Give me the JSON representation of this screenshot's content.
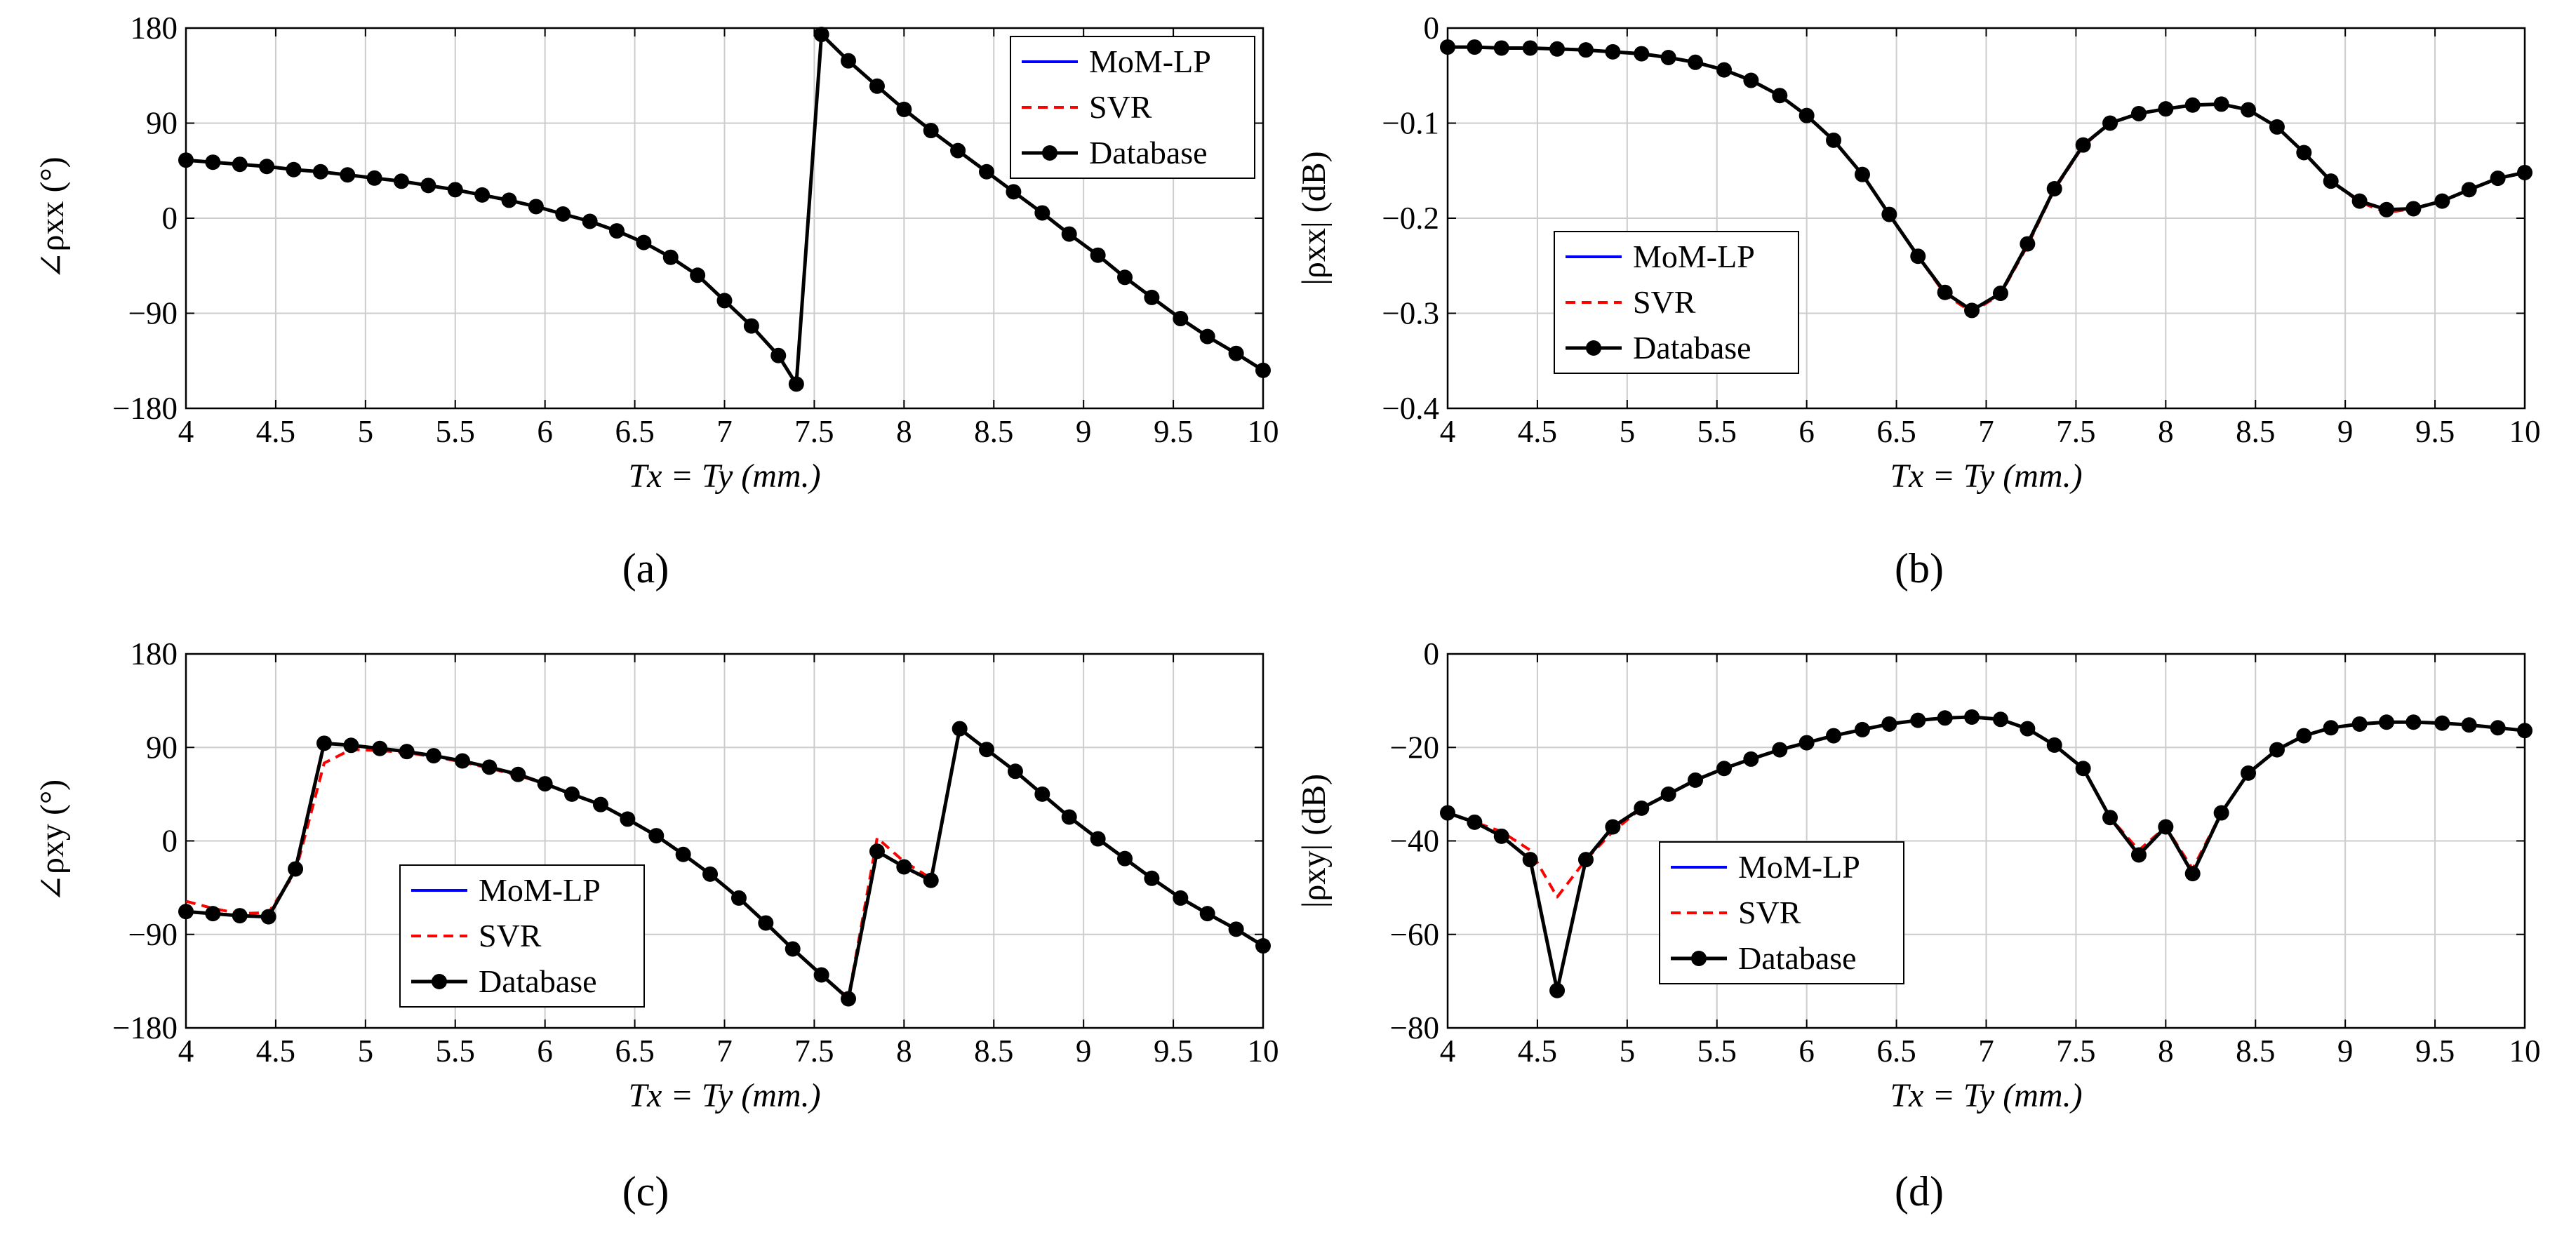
{
  "colors": {
    "mom": "#0000ff",
    "svr": "#ff0000",
    "db": "#000000",
    "grid": "#cccccc"
  },
  "chart_data": [
    {
      "type": "line",
      "caption": "(a)",
      "ylabel": "∠ρxx (°)",
      "xlabel": "Tx = Ty (mm.)",
      "xlim": [
        4,
        10
      ],
      "ylim": [
        -180,
        180
      ],
      "xticks": [
        "4",
        "4.5",
        "5",
        "5.5",
        "6",
        "6.5",
        "7",
        "7.5",
        "8",
        "8.5",
        "9",
        "9.5",
        "10"
      ],
      "yticks": [
        "−180",
        "−90",
        "0",
        "90",
        "180"
      ],
      "ytick_values": [
        -180,
        -90,
        0,
        90,
        180
      ],
      "legend": [
        "MoM-LP",
        "SVR",
        "Database"
      ],
      "legend_position": "top-right",
      "x": [
        4,
        4.15,
        4.3,
        4.45,
        4.6,
        4.75,
        4.9,
        5.05,
        5.2,
        5.35,
        5.5,
        5.65,
        5.8,
        5.95,
        6.1,
        6.25,
        6.4,
        6.55,
        6.7,
        6.85,
        7.0,
        7.15,
        7.3,
        7.4,
        7.54,
        7.69,
        7.85,
        8.0,
        8.15,
        8.3,
        8.46,
        8.61,
        8.77,
        8.92,
        9.08,
        9.23,
        9.38,
        9.54,
        9.69,
        9.85,
        10
      ],
      "series": [
        {
          "name": "MoM-LP",
          "values": [
            55,
            53,
            51,
            49,
            46,
            44,
            41,
            38,
            35,
            31,
            27,
            22,
            17,
            11,
            4,
            -3,
            -12,
            -23,
            -37,
            -54,
            -78,
            -102,
            -130,
            -157,
            174,
            149,
            125,
            103,
            83,
            64,
            44,
            25,
            5,
            -15,
            -35,
            -56,
            -75,
            -95,
            -112,
            -128,
            -144
          ]
        },
        {
          "name": "SVR",
          "values": [
            55,
            53,
            51,
            49,
            46,
            44,
            41,
            38,
            35,
            31,
            27,
            22,
            17,
            11,
            4,
            -3,
            -12,
            -23,
            -37,
            -54,
            -78,
            -102,
            -130,
            -157,
            174,
            149,
            125,
            103,
            83,
            64,
            44,
            25,
            5,
            -15,
            -35,
            -56,
            -75,
            -95,
            -112,
            -128,
            -144
          ]
        },
        {
          "name": "Database",
          "values": [
            55,
            53,
            51,
            49,
            46,
            44,
            41,
            38,
            35,
            31,
            27,
            22,
            17,
            11,
            4,
            -3,
            -12,
            -23,
            -37,
            -54,
            -78,
            -102,
            -130,
            -157,
            174,
            149,
            125,
            103,
            83,
            64,
            44,
            25,
            5,
            -15,
            -35,
            -56,
            -75,
            -95,
            -112,
            -128,
            -144
          ]
        }
      ]
    },
    {
      "type": "line",
      "caption": "(b)",
      "ylabel": "|ρxx| (dB)",
      "xlabel": "Tx = Ty (mm.)",
      "xlim": [
        4,
        10
      ],
      "ylim": [
        -0.4,
        0
      ],
      "xticks": [
        "4",
        "4.5",
        "5",
        "5.5",
        "6",
        "6.5",
        "7",
        "7.5",
        "8",
        "8.5",
        "9",
        "9.5",
        "10"
      ],
      "yticks": [
        "−0.4",
        "−0.3",
        "−0.2",
        "−0.1",
        "0"
      ],
      "ytick_values": [
        -0.4,
        -0.3,
        -0.2,
        -0.1,
        0
      ],
      "legend": [
        "MoM-LP",
        "SVR",
        "Database"
      ],
      "legend_position": "lower-left",
      "x": [
        4,
        4.15,
        4.3,
        4.46,
        4.61,
        4.77,
        4.92,
        5.08,
        5.23,
        5.38,
        5.54,
        5.69,
        5.85,
        6.0,
        6.15,
        6.31,
        6.46,
        6.62,
        6.77,
        6.92,
        7.08,
        7.23,
        7.38,
        7.54,
        7.69,
        7.85,
        8.0,
        8.15,
        8.31,
        8.46,
        8.62,
        8.77,
        8.92,
        9.08,
        9.23,
        9.38,
        9.54,
        9.69,
        9.85,
        10
      ],
      "series": [
        {
          "name": "MoM-LP",
          "values": [
            -0.02,
            -0.02,
            -0.021,
            -0.021,
            -0.022,
            -0.023,
            -0.025,
            -0.027,
            -0.031,
            -0.036,
            -0.044,
            -0.055,
            -0.071,
            -0.092,
            -0.118,
            -0.154,
            -0.196,
            -0.24,
            -0.278,
            -0.297,
            -0.279,
            -0.227,
            -0.169,
            -0.123,
            -0.1,
            -0.09,
            -0.085,
            -0.081,
            -0.08,
            -0.086,
            -0.104,
            -0.131,
            -0.161,
            -0.182,
            -0.191,
            -0.19,
            -0.182,
            -0.17,
            -0.158,
            -0.152
          ]
        },
        {
          "name": "SVR",
          "values": [
            -0.02,
            -0.02,
            -0.021,
            -0.021,
            -0.022,
            -0.023,
            -0.025,
            -0.027,
            -0.031,
            -0.036,
            -0.044,
            -0.055,
            -0.071,
            -0.092,
            -0.118,
            -0.154,
            -0.196,
            -0.24,
            -0.28,
            -0.299,
            -0.28,
            -0.229,
            -0.17,
            -0.124,
            -0.1,
            -0.09,
            -0.085,
            -0.081,
            -0.08,
            -0.086,
            -0.104,
            -0.131,
            -0.161,
            -0.183,
            -0.194,
            -0.19,
            -0.182,
            -0.17,
            -0.158,
            -0.152
          ]
        },
        {
          "name": "Database",
          "values": [
            -0.02,
            -0.02,
            -0.021,
            -0.021,
            -0.022,
            -0.023,
            -0.025,
            -0.027,
            -0.031,
            -0.036,
            -0.044,
            -0.055,
            -0.071,
            -0.092,
            -0.118,
            -0.154,
            -0.196,
            -0.24,
            -0.278,
            -0.297,
            -0.279,
            -0.227,
            -0.169,
            -0.123,
            -0.1,
            -0.09,
            -0.085,
            -0.081,
            -0.08,
            -0.086,
            -0.104,
            -0.131,
            -0.161,
            -0.182,
            -0.191,
            -0.19,
            -0.182,
            -0.17,
            -0.158,
            -0.152
          ]
        }
      ]
    },
    {
      "type": "line",
      "caption": "(c)",
      "ylabel": "∠ρxy (°)",
      "xlabel": "Tx = Ty (mm.)",
      "xlim": [
        4,
        10
      ],
      "ylim": [
        -180,
        180
      ],
      "xticks": [
        "4",
        "4.5",
        "5",
        "5.5",
        "6",
        "6.5",
        "7",
        "7.5",
        "8",
        "8.5",
        "9",
        "9.5",
        "10"
      ],
      "yticks": [
        "−180",
        "−90",
        "0",
        "90",
        "180"
      ],
      "ytick_values": [
        -180,
        -90,
        0,
        90,
        180
      ],
      "legend": [
        "MoM-LP",
        "SVR",
        "Database"
      ],
      "legend_position": "lower-left",
      "x": [
        4,
        4.15,
        4.3,
        4.46,
        4.61,
        4.77,
        4.92,
        5.08,
        5.23,
        5.38,
        5.54,
        5.69,
        5.85,
        6.0,
        6.15,
        6.31,
        6.46,
        6.62,
        6.77,
        6.92,
        7.08,
        7.23,
        7.38,
        7.54,
        7.69,
        7.85,
        8.0,
        8.15,
        8.31,
        8.46,
        8.62,
        8.77,
        8.92,
        9.08,
        9.23,
        9.38,
        9.54,
        9.69,
        9.85,
        10
      ],
      "series": [
        {
          "name": "MoM-LP",
          "values": [
            -68,
            -70,
            -72,
            -73,
            -27,
            94,
            92,
            89,
            86,
            82,
            77,
            71,
            64,
            55,
            45,
            35,
            21,
            5,
            -13,
            -32,
            -55,
            -79,
            -104,
            -129,
            -152,
            -10,
            -25,
            -38,
            108,
            88,
            67,
            45,
            23,
            2,
            -17,
            -36,
            -55,
            -70,
            -85,
            -101
          ]
        },
        {
          "name": "SVR",
          "values": [
            -58,
            -65,
            -70,
            -69,
            -30,
            75,
            88,
            87,
            85,
            81,
            76,
            70,
            63,
            55,
            45,
            35,
            21,
            5,
            -13,
            -32,
            -55,
            -79,
            -104,
            -129,
            -151,
            3,
            -20,
            -36,
            108,
            88,
            67,
            45,
            23,
            2,
            -17,
            -36,
            -55,
            -70,
            -85,
            -101
          ]
        },
        {
          "name": "Database",
          "values": [
            -68,
            -70,
            -72,
            -73,
            -27,
            94,
            92,
            89,
            86,
            82,
            77,
            71,
            64,
            55,
            45,
            35,
            21,
            5,
            -13,
            -32,
            -55,
            -79,
            -104,
            -129,
            -152,
            -10,
            -25,
            -38,
            108,
            88,
            67,
            45,
            23,
            2,
            -17,
            -36,
            -55,
            -70,
            -85,
            -101
          ]
        }
      ]
    },
    {
      "type": "line",
      "caption": "(d)",
      "ylabel": "|ρxy| (dB)",
      "xlabel": "Tx = Ty (mm.)",
      "xlim": [
        4,
        10
      ],
      "ylim": [
        -80,
        0
      ],
      "xticks": [
        "4",
        "4.5",
        "5",
        "5.5",
        "6",
        "6.5",
        "7",
        "7.5",
        "8",
        "8.5",
        "9",
        "9.5",
        "10"
      ],
      "yticks": [
        "−80",
        "−60",
        "−40",
        "−20",
        "0"
      ],
      "ytick_values": [
        -80,
        -60,
        -40,
        -20,
        0
      ],
      "legend": [
        "MoM-LP",
        "SVR",
        "Database"
      ],
      "legend_position": "lower-left",
      "x": [
        4,
        4.15,
        4.3,
        4.46,
        4.61,
        4.77,
        4.92,
        5.08,
        5.23,
        5.38,
        5.54,
        5.69,
        5.85,
        6.0,
        6.15,
        6.31,
        6.46,
        6.62,
        6.77,
        6.92,
        7.08,
        7.23,
        7.38,
        7.54,
        7.69,
        7.85,
        8.0,
        8.15,
        8.31,
        8.46,
        8.62,
        8.77,
        8.92,
        9.08,
        9.23,
        9.38,
        9.54,
        9.69,
        9.85,
        10
      ],
      "series": [
        {
          "name": "MoM-LP",
          "values": [
            -34,
            -36,
            -39,
            -44,
            -72,
            -44,
            -37,
            -33,
            -30,
            -27,
            -24.5,
            -22.5,
            -20.5,
            -19,
            -17.5,
            -16.2,
            -15,
            -14.2,
            -13.7,
            -13.5,
            -14,
            -16,
            -19.5,
            -24.5,
            -35,
            -43,
            -37,
            -47,
            -34,
            -25.5,
            -20.5,
            -17.5,
            -15.8,
            -15,
            -14.6,
            -14.6,
            -14.8,
            -15.2,
            -15.8,
            -16.4
          ]
        },
        {
          "name": "SVR",
          "values": [
            -34,
            -36,
            -38,
            -42,
            -52,
            -44,
            -38,
            -33,
            -30,
            -27,
            -24.5,
            -22.5,
            -20.5,
            -19,
            -17.5,
            -16.2,
            -15,
            -14.2,
            -13.7,
            -13.5,
            -14,
            -16,
            -19.5,
            -24.5,
            -35,
            -42,
            -37,
            -46,
            -34,
            -25.5,
            -20.5,
            -17.5,
            -15.8,
            -15,
            -14.6,
            -14.6,
            -14.8,
            -15.2,
            -15.8,
            -16.4
          ]
        },
        {
          "name": "Database",
          "values": [
            -34,
            -36,
            -39,
            -44,
            -72,
            -44,
            -37,
            -33,
            -30,
            -27,
            -24.5,
            -22.5,
            -20.5,
            -19,
            -17.5,
            -16.2,
            -15,
            -14.2,
            -13.7,
            -13.5,
            -14,
            -16,
            -19.5,
            -24.5,
            -35,
            -43,
            -37,
            -47,
            -34,
            -25.5,
            -20.5,
            -17.5,
            -15.8,
            -15,
            -14.6,
            -14.6,
            -14.8,
            -15.2,
            -15.8,
            -16.4
          ]
        }
      ]
    }
  ]
}
